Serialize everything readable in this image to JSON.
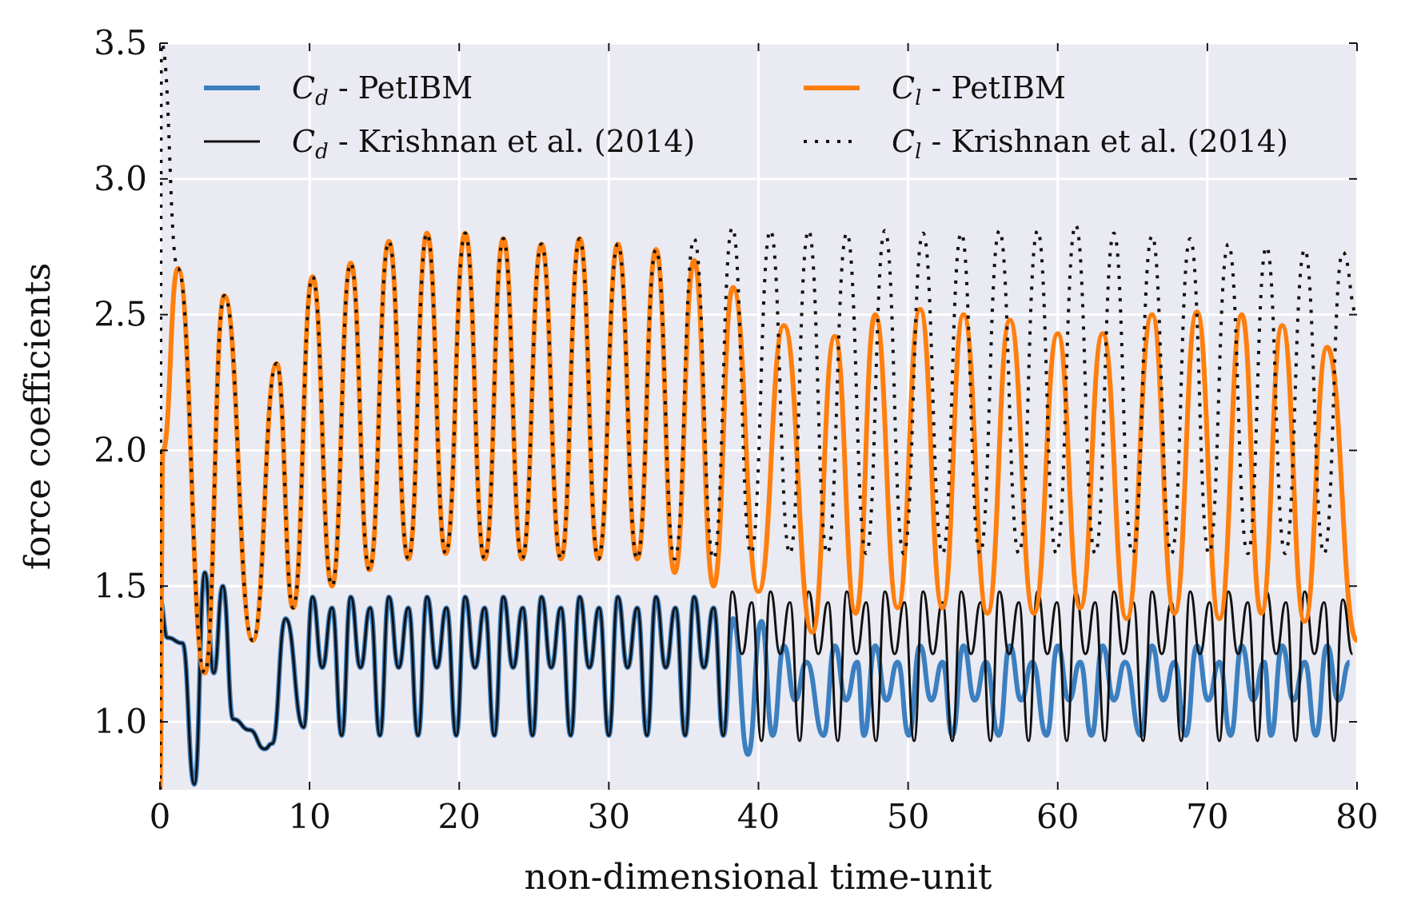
{
  "chart_data": {
    "type": "line",
    "xlabel": "non-dimensional time-unit",
    "ylabel": "force coefficients",
    "xlim": [
      0,
      80
    ],
    "xticks": [
      0,
      10,
      20,
      30,
      40,
      50,
      60,
      70,
      80
    ],
    "ylim": [
      0.75,
      3.5
    ],
    "yticks": [
      {
        "value": 1.0,
        "label": "1.0"
      },
      1.5,
      {
        "value": 2.0,
        "label": "2.0"
      },
      2.5,
      {
        "value": 3.0,
        "label": "3.0"
      },
      3.5
    ],
    "grid": true,
    "legend": "upper",
    "series": [
      {
        "name": "Cd - PetIBM",
        "color": "#3b7fc0",
        "linewidth": 6,
        "linestyle": "solid",
        "x": [
          0,
          0.5,
          1.5,
          2.3,
          3.0,
          3.6,
          4.2,
          4.9,
          6.0,
          7.0,
          7.5,
          8.4,
          9.6,
          10.2,
          10.85,
          11.5,
          12.15,
          12.75,
          13.4,
          14.05,
          14.7,
          15.3,
          15.95,
          16.6,
          17.25,
          17.85,
          18.5,
          19.15,
          19.8,
          20.4,
          21.05,
          21.7,
          22.35,
          22.95,
          23.6,
          24.25,
          24.9,
          25.5,
          26.15,
          26.8,
          27.45,
          28.05,
          28.7,
          29.35,
          30.0,
          30.6,
          31.25,
          31.9,
          32.55,
          33.15,
          33.8,
          34.45,
          35.1,
          35.7,
          36.35,
          37.0,
          37.65,
          38.3,
          39.3,
          40.2,
          40.95,
          41.7,
          42.45,
          43.2,
          44.35,
          45.1,
          45.85,
          46.6,
          47.05,
          47.8,
          48.55,
          49.3,
          50.05,
          50.8,
          51.55,
          52.3,
          52.95,
          53.7,
          54.45,
          55.2,
          56.05,
          56.8,
          57.55,
          58.3,
          59.25,
          60.0,
          60.75,
          61.5,
          62.25,
          63.0,
          63.75,
          64.5,
          65.55,
          66.3,
          67.05,
          67.8,
          68.55,
          69.3,
          70.05,
          70.8,
          71.55,
          72.3,
          73.05,
          73.8,
          74.25,
          75.0,
          75.75,
          76.5,
          77.25,
          78.0,
          78.75,
          79.5
        ],
        "values": [
          1.45,
          1.31,
          1.29,
          0.77,
          1.55,
          1.18,
          1.5,
          1.01,
          0.97,
          0.9,
          0.92,
          1.38,
          0.98,
          1.46,
          1.2,
          1.42,
          0.95,
          1.46,
          1.2,
          1.42,
          0.95,
          1.46,
          1.2,
          1.42,
          0.95,
          1.46,
          1.2,
          1.42,
          0.95,
          1.46,
          1.2,
          1.42,
          0.95,
          1.46,
          1.2,
          1.42,
          0.95,
          1.46,
          1.2,
          1.42,
          0.95,
          1.46,
          1.2,
          1.42,
          0.95,
          1.46,
          1.2,
          1.42,
          0.95,
          1.46,
          1.2,
          1.42,
          0.95,
          1.46,
          1.2,
          1.42,
          0.95,
          1.38,
          0.88,
          1.37,
          0.95,
          1.28,
          1.08,
          1.22,
          0.95,
          1.28,
          1.08,
          1.22,
          0.95,
          1.28,
          1.08,
          1.22,
          0.95,
          1.28,
          1.08,
          1.22,
          0.95,
          1.28,
          1.08,
          1.22,
          0.95,
          1.28,
          1.08,
          1.22,
          0.95,
          1.28,
          1.08,
          1.22,
          0.95,
          1.28,
          1.08,
          1.22,
          0.95,
          1.28,
          1.08,
          1.22,
          0.95,
          1.28,
          1.08,
          1.22,
          0.95,
          1.28,
          1.08,
          1.22,
          0.95,
          1.28,
          1.08,
          1.22,
          0.95,
          1.28,
          1.08,
          1.22
        ]
      },
      {
        "name": "Cd - Krishnan et al. (2014)",
        "color": "#111111",
        "linewidth": 3,
        "linestyle": "solid",
        "x": [
          0,
          0.5,
          1.5,
          2.3,
          3.0,
          3.6,
          4.2,
          4.9,
          6.0,
          7.0,
          7.5,
          8.4,
          9.6,
          10.2,
          10.85,
          11.5,
          12.15,
          12.75,
          13.4,
          14.05,
          14.7,
          15.3,
          15.95,
          16.6,
          17.25,
          17.85,
          18.5,
          19.15,
          19.8,
          20.4,
          21.05,
          21.7,
          22.35,
          22.95,
          23.6,
          24.25,
          24.9,
          25.5,
          26.15,
          26.8,
          27.45,
          28.05,
          28.7,
          29.35,
          30.0,
          30.6,
          31.25,
          31.9,
          32.55,
          33.15,
          33.8,
          34.45,
          35.1,
          35.7,
          36.35,
          37.0,
          37.65,
          38.25,
          38.9,
          39.55,
          40.2,
          40.8,
          41.45,
          42.1,
          42.75,
          43.35,
          44.0,
          44.65,
          45.3,
          45.9,
          46.55,
          47.2,
          47.85,
          48.45,
          49.1,
          49.75,
          50.4,
          51.0,
          51.65,
          52.3,
          52.95,
          53.55,
          54.2,
          54.85,
          55.5,
          56.1,
          56.75,
          57.4,
          58.05,
          58.65,
          59.3,
          59.95,
          60.6,
          61.2,
          61.85,
          62.5,
          63.15,
          63.75,
          64.4,
          65.05,
          65.7,
          66.3,
          66.95,
          67.6,
          68.25,
          68.85,
          69.5,
          70.15,
          70.8,
          71.4,
          72.05,
          72.7,
          73.35,
          73.95,
          74.6,
          75.25,
          75.9,
          76.5,
          77.15,
          77.8,
          78.45,
          79.05,
          79.7
        ],
        "values": [
          1.45,
          1.31,
          1.29,
          0.77,
          1.55,
          1.18,
          1.5,
          1.01,
          0.97,
          0.9,
          0.92,
          1.38,
          0.98,
          1.46,
          1.2,
          1.42,
          0.95,
          1.46,
          1.2,
          1.42,
          0.95,
          1.46,
          1.2,
          1.42,
          0.95,
          1.46,
          1.2,
          1.42,
          0.95,
          1.46,
          1.2,
          1.42,
          0.95,
          1.46,
          1.2,
          1.42,
          0.95,
          1.46,
          1.2,
          1.42,
          0.95,
          1.46,
          1.2,
          1.42,
          0.95,
          1.46,
          1.2,
          1.42,
          0.95,
          1.46,
          1.2,
          1.42,
          0.95,
          1.46,
          1.2,
          1.42,
          0.95,
          1.48,
          1.25,
          1.44,
          0.93,
          1.48,
          1.25,
          1.44,
          0.93,
          1.48,
          1.25,
          1.44,
          0.93,
          1.48,
          1.25,
          1.44,
          0.93,
          1.48,
          1.25,
          1.44,
          0.93,
          1.48,
          1.25,
          1.44,
          0.93,
          1.48,
          1.25,
          1.44,
          0.93,
          1.48,
          1.25,
          1.44,
          0.93,
          1.48,
          1.25,
          1.44,
          0.93,
          1.48,
          1.25,
          1.44,
          0.93,
          1.48,
          1.25,
          1.44,
          0.93,
          1.48,
          1.25,
          1.44,
          0.93,
          1.48,
          1.25,
          1.44,
          0.93,
          1.48,
          1.25,
          1.44,
          0.93,
          1.48,
          1.25,
          1.44,
          0.93,
          1.48,
          1.25,
          1.44,
          0.93,
          1.45,
          1.25
        ]
      },
      {
        "name": "Cl - PetIBM",
        "color": "#ff7f0e",
        "linewidth": 6,
        "linestyle": "solid",
        "x": [
          0,
          0.2,
          1.2,
          3.0,
          4.3,
          6.2,
          7.8,
          8.9,
          10.2,
          11.5,
          12.75,
          14.0,
          15.3,
          16.6,
          17.85,
          19.1,
          20.4,
          21.7,
          22.95,
          24.2,
          25.5,
          26.8,
          28.05,
          29.3,
          30.6,
          31.9,
          33.15,
          34.4,
          35.7,
          37.0,
          38.3,
          40.0,
          41.7,
          43.6,
          45.1,
          46.5,
          47.8,
          49.3,
          50.8,
          52.3,
          53.7,
          55.3,
          56.8,
          58.4,
          60.0,
          61.5,
          63.0,
          64.6,
          66.3,
          67.8,
          69.3,
          70.8,
          72.3,
          73.6,
          75.0,
          76.5,
          78.0,
          80
        ],
        "values": [
          0.75,
          2.0,
          2.67,
          1.18,
          2.57,
          1.3,
          2.32,
          1.42,
          2.64,
          1.5,
          2.69,
          1.56,
          2.77,
          1.6,
          2.8,
          1.62,
          2.8,
          1.6,
          2.78,
          1.6,
          2.76,
          1.6,
          2.78,
          1.6,
          2.76,
          1.6,
          2.74,
          1.55,
          2.7,
          1.5,
          2.6,
          1.48,
          2.46,
          1.33,
          2.42,
          1.4,
          2.5,
          1.42,
          2.52,
          1.42,
          2.5,
          1.4,
          2.48,
          1.4,
          2.43,
          1.42,
          2.43,
          1.38,
          2.5,
          1.4,
          2.51,
          1.38,
          2.5,
          1.4,
          2.46,
          1.37,
          2.38,
          1.3
        ]
      },
      {
        "name": "Cl - Krishnan et al. (2014)",
        "color": "#111111",
        "linewidth": 4,
        "linestyle": "dotted",
        "x": [
          0,
          0.1,
          1.2,
          3.0,
          4.3,
          6.2,
          7.8,
          8.9,
          10.2,
          11.5,
          12.75,
          14.0,
          15.3,
          16.6,
          17.85,
          19.1,
          20.4,
          21.7,
          22.95,
          24.2,
          25.5,
          26.8,
          28.05,
          29.3,
          30.6,
          31.9,
          33.15,
          34.4,
          35.7,
          37.0,
          38.25,
          39.5,
          40.8,
          42.1,
          43.35,
          44.6,
          45.9,
          47.2,
          48.45,
          49.7,
          51.0,
          52.3,
          53.55,
          54.8,
          56.1,
          57.4,
          58.65,
          59.9,
          61.2,
          62.5,
          63.75,
          65.0,
          66.3,
          67.6,
          68.85,
          70.1,
          71.4,
          72.7,
          73.95,
          75.2,
          76.5,
          77.8,
          79.05,
          80
        ],
        "values": [
          0.75,
          3.5,
          2.67,
          1.18,
          2.57,
          1.3,
          2.32,
          1.42,
          2.64,
          1.5,
          2.69,
          1.56,
          2.77,
          1.6,
          2.8,
          1.62,
          2.8,
          1.6,
          2.78,
          1.6,
          2.76,
          1.6,
          2.78,
          1.6,
          2.76,
          1.6,
          2.74,
          1.6,
          2.78,
          1.6,
          2.82,
          1.62,
          2.81,
          1.62,
          2.81,
          1.62,
          2.8,
          1.62,
          2.81,
          1.62,
          2.8,
          1.62,
          2.8,
          1.62,
          2.81,
          1.62,
          2.81,
          1.62,
          2.83,
          1.62,
          2.8,
          1.62,
          2.79,
          1.62,
          2.78,
          1.62,
          2.76,
          1.62,
          2.75,
          1.62,
          2.74,
          1.62,
          2.73,
          2.5
        ]
      }
    ]
  }
}
